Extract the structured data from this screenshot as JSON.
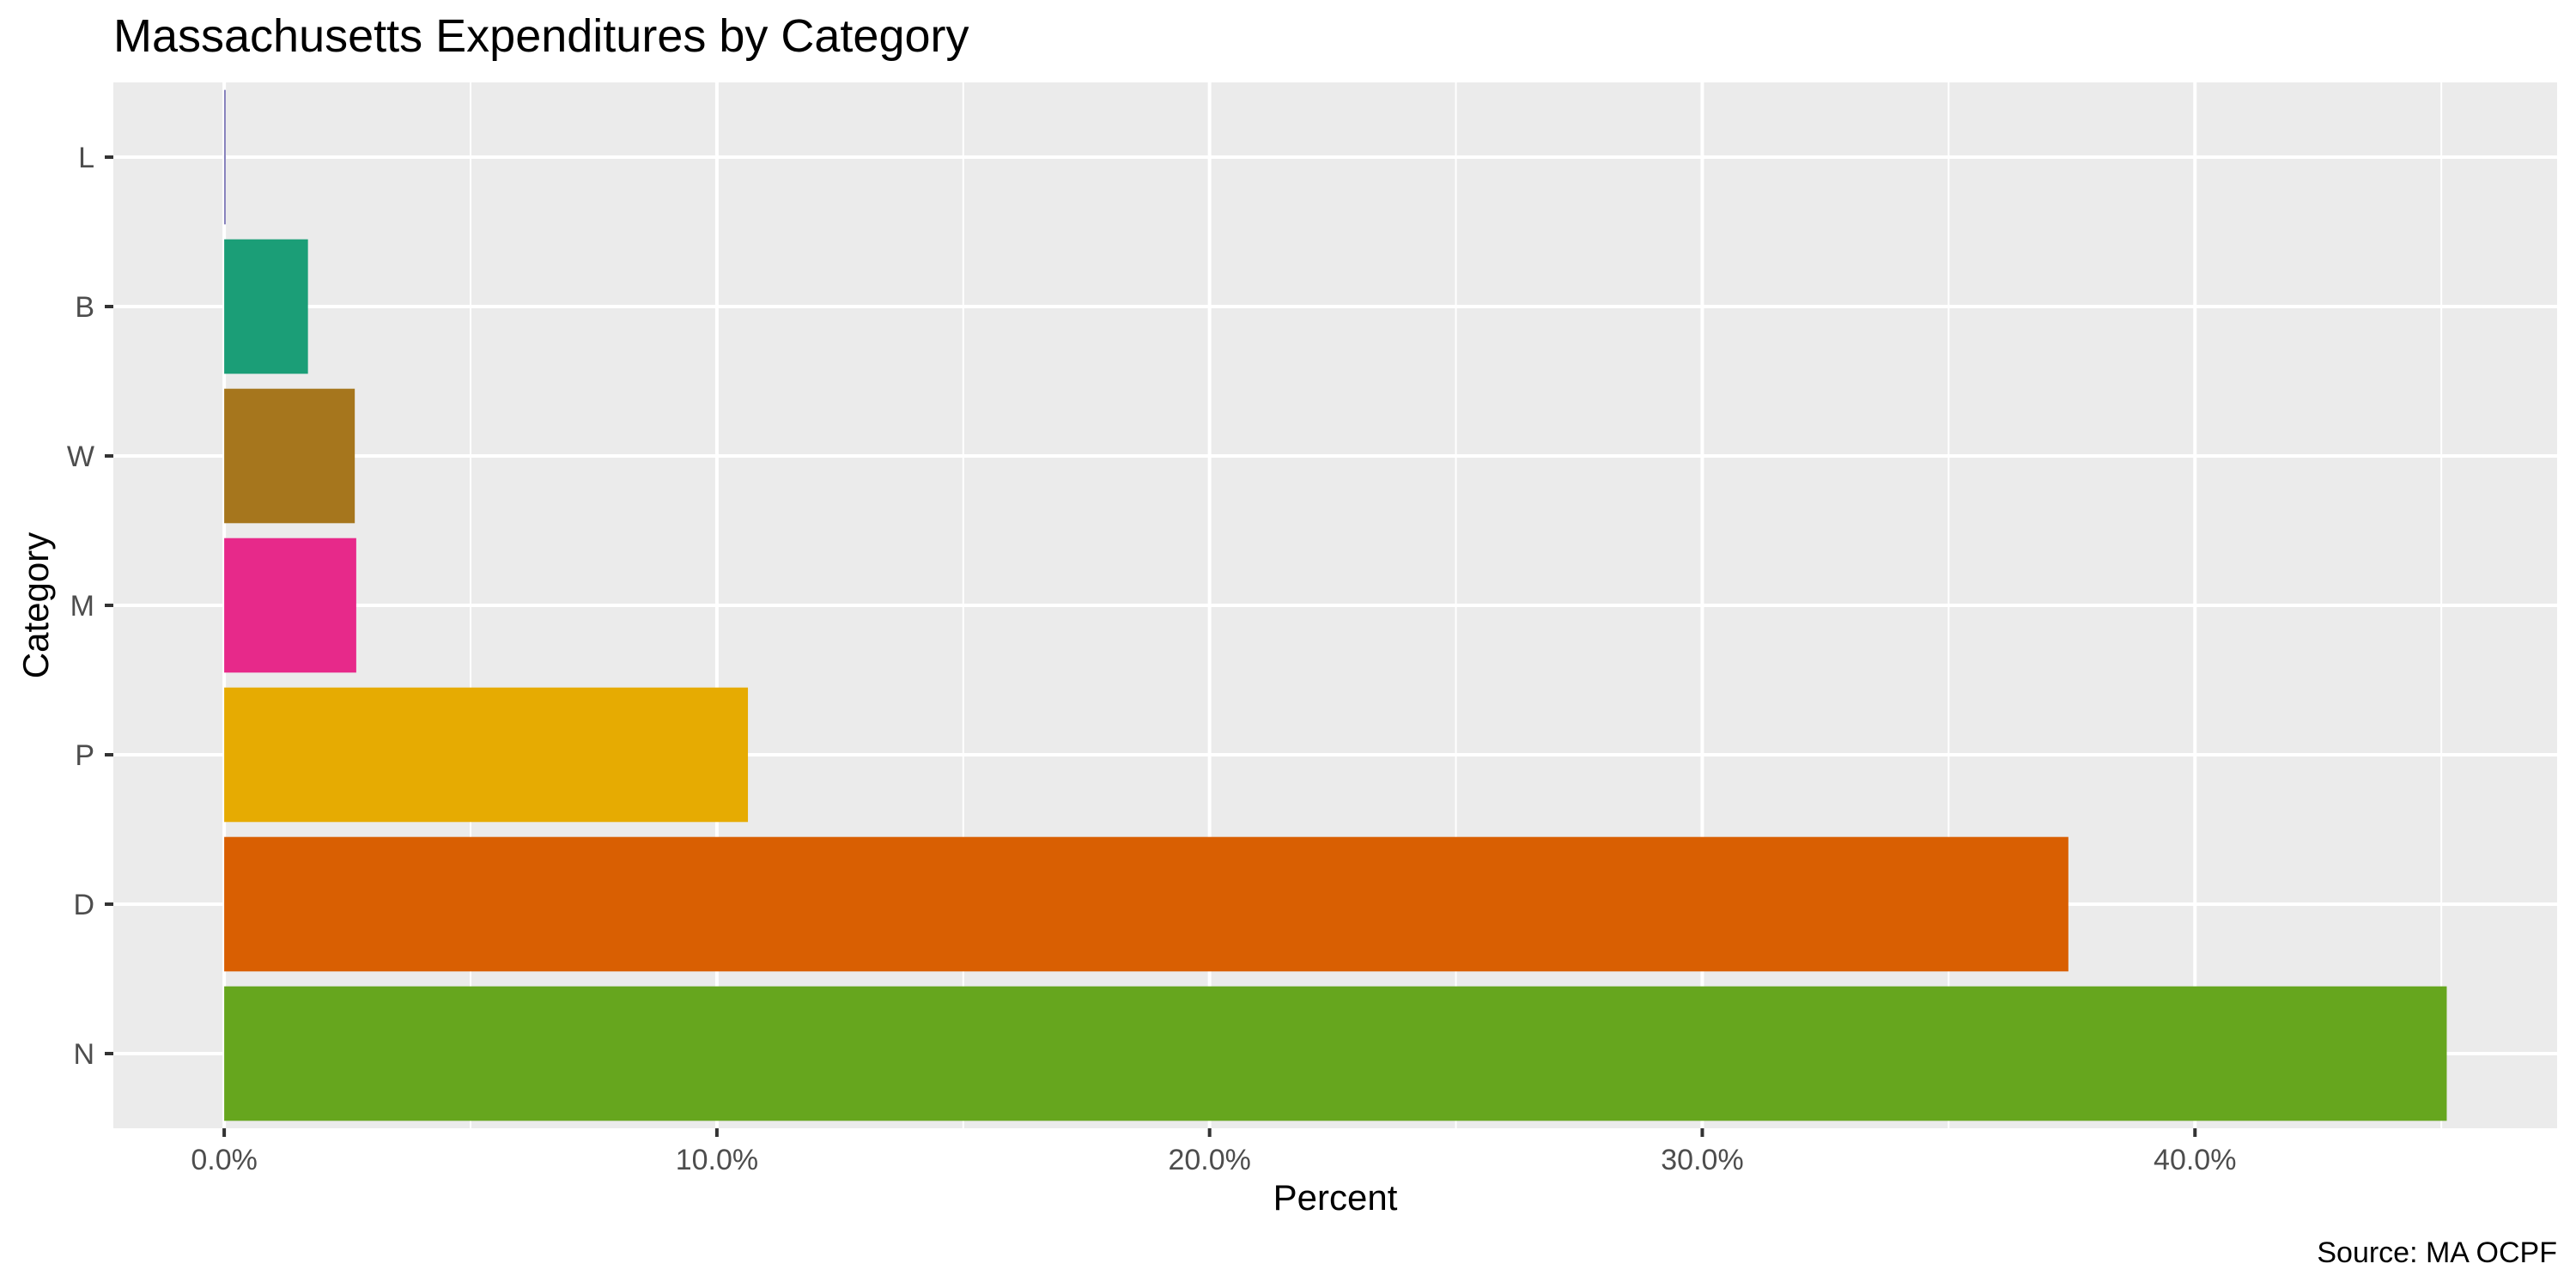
{
  "chart_data": {
    "type": "bar",
    "orientation": "horizontal",
    "title": "Massachusetts Expenditures by Category",
    "xlabel": "Percent",
    "ylabel": "Category",
    "caption": "Source: MA OCPF",
    "categories": [
      "L",
      "B",
      "W",
      "M",
      "P",
      "D",
      "N"
    ],
    "values": [
      0.0003,
      0.017,
      0.0265,
      0.0268,
      0.1063,
      0.3743,
      0.4511
    ],
    "colors": [
      "#7570B3",
      "#1B9E77",
      "#A6761D",
      "#E7298A",
      "#E6AB02",
      "#D95F02",
      "#66A61E"
    ],
    "xlim": [
      -0.0225,
      0.4735
    ],
    "x_ticks": [
      0,
      0.1,
      0.2,
      0.3,
      0.4
    ],
    "x_tick_labels": [
      "0.0%",
      "10.0%",
      "20.0%",
      "30.0%",
      "40.0%"
    ],
    "grid": true,
    "legend": "none",
    "panel_background": "#EBEBEB"
  }
}
